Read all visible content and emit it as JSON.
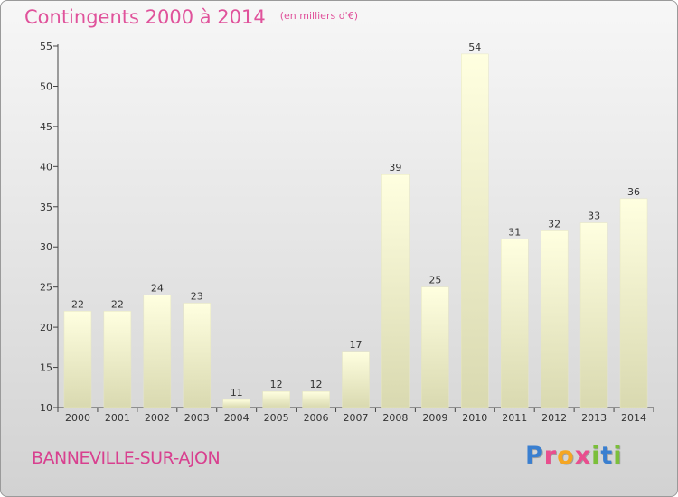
{
  "header": {
    "title": "Contingents 2000 à 2014",
    "unit": "(en milliers d'€)"
  },
  "footer": {
    "commune": "BANNEVILLE-SUR-AJON",
    "logo_letters": [
      "P",
      "r",
      "o",
      "x",
      "i",
      "t",
      "i"
    ],
    "logo_colors": [
      "#3a7fd0",
      "#e94e8e",
      "#f5a623",
      "#e94e8e",
      "#7bbf3a",
      "#3a7fd0",
      "#7bbf3a"
    ]
  },
  "chart_data": {
    "type": "bar",
    "categories": [
      "2000",
      "2001",
      "2002",
      "2003",
      "2004",
      "2005",
      "2006",
      "2007",
      "2008",
      "2009",
      "2010",
      "2011",
      "2012",
      "2013",
      "2014"
    ],
    "values": [
      22,
      22,
      24,
      23,
      11,
      12,
      12,
      17,
      39,
      25,
      54,
      31,
      32,
      33,
      36
    ],
    "value_labels": [
      "22",
      "22",
      "24",
      "23",
      "11",
      "12",
      "12",
      "17",
      "39",
      "25",
      "54",
      "31",
      "32",
      "33",
      "36"
    ],
    "y_ticks": [
      "10",
      "15",
      "20",
      "25",
      "30",
      "35",
      "40",
      "45",
      "50",
      "55"
    ],
    "ylim": [
      10,
      55
    ],
    "grid": false,
    "bar_color": "#f4f4cf"
  }
}
